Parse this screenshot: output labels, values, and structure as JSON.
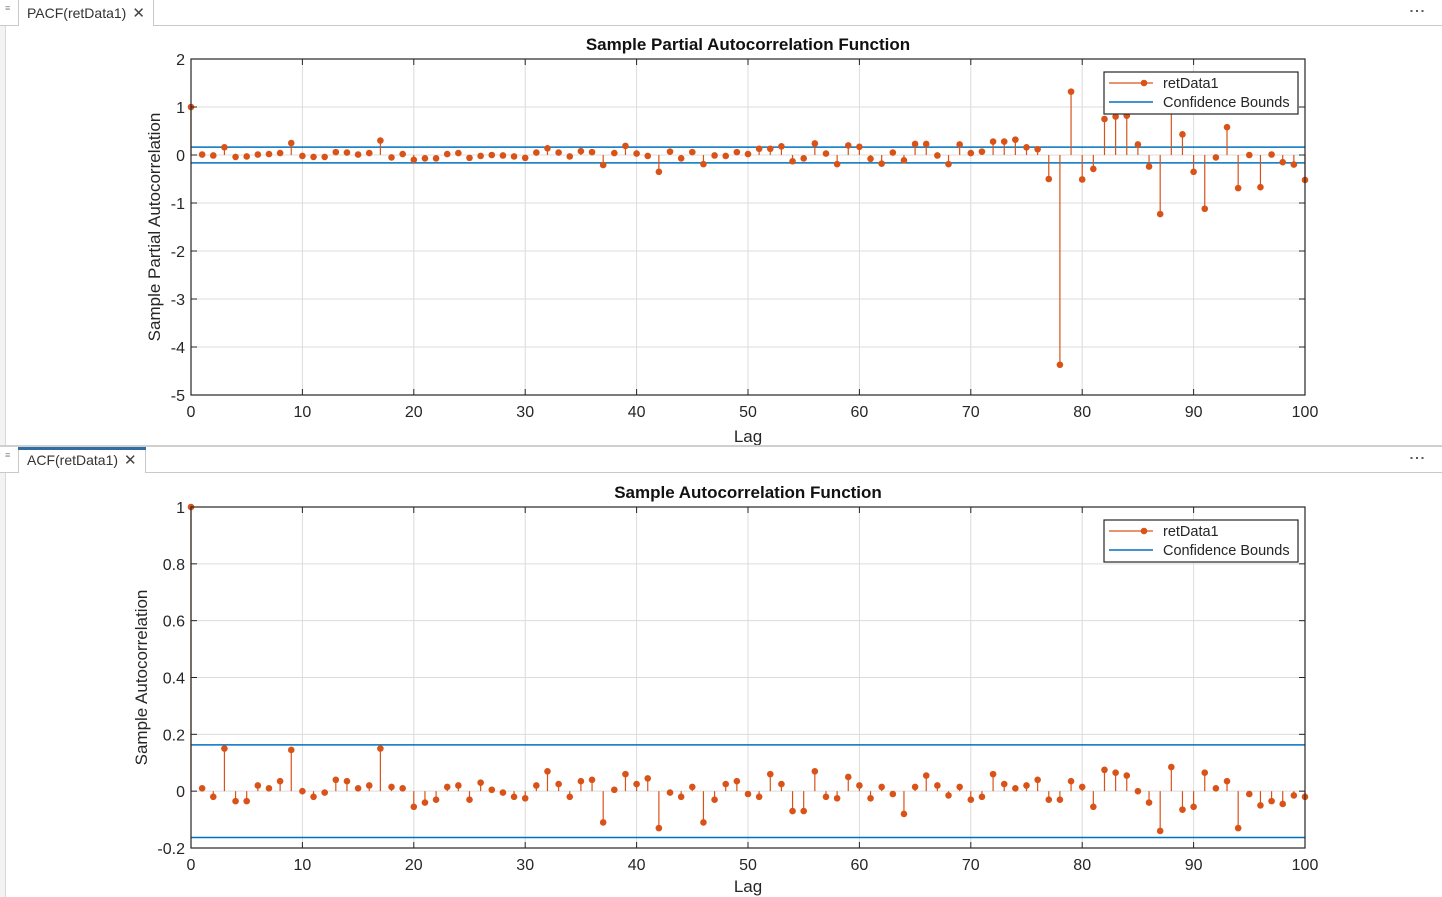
{
  "tabs": [
    {
      "label": "PACF(retData1)",
      "close": "✕",
      "menu": "⋮"
    },
    {
      "label": "ACF(retData1)",
      "close": "✕",
      "menu": "⋮"
    }
  ],
  "colors": {
    "stem": "#d95319",
    "bounds": "#0072bd",
    "grid": "#dcdcdc",
    "axis": "#262626"
  },
  "chart_data": [
    {
      "type": "stem",
      "title": "Sample Partial Autocorrelation Function",
      "xlabel": "Lag",
      "ylabel": "Sample Partial Autocorrelation",
      "xlim": [
        0,
        100
      ],
      "ylim": [
        -5,
        2
      ],
      "xticks": [
        0,
        10,
        20,
        30,
        40,
        50,
        60,
        70,
        80,
        90,
        100
      ],
      "yticks": [
        -5,
        -4,
        -3,
        -2,
        -1,
        0,
        1,
        2
      ],
      "ytick_labels": [
        "-5",
        "-4",
        "-3",
        "-2",
        "-1",
        "0",
        "1",
        "2"
      ],
      "grid": true,
      "legend_position": "top-right",
      "series": [
        {
          "name": "retData1",
          "style": "stem",
          "x": [
            0,
            1,
            2,
            3,
            4,
            5,
            6,
            7,
            8,
            9,
            10,
            11,
            12,
            13,
            14,
            15,
            16,
            17,
            18,
            19,
            20,
            21,
            22,
            23,
            24,
            25,
            26,
            27,
            28,
            29,
            30,
            31,
            32,
            33,
            34,
            35,
            36,
            37,
            38,
            39,
            40,
            41,
            42,
            43,
            44,
            45,
            46,
            47,
            48,
            49,
            50,
            51,
            52,
            53,
            54,
            55,
            56,
            57,
            58,
            59,
            60,
            61,
            62,
            63,
            64,
            65,
            66,
            67,
            68,
            69,
            70,
            71,
            72,
            73,
            74,
            75,
            76,
            77,
            78,
            79,
            80,
            81,
            82,
            83,
            84,
            85,
            86,
            87,
            88,
            89,
            90,
            91,
            92,
            93,
            94,
            95,
            96,
            97,
            98,
            99,
            100
          ],
          "values": [
            1.0,
            0.01,
            -0.01,
            0.16,
            -0.04,
            -0.03,
            0.01,
            0.02,
            0.04,
            0.25,
            -0.02,
            -0.04,
            -0.04,
            0.06,
            0.05,
            0.01,
            0.04,
            0.3,
            -0.05,
            0.02,
            -0.1,
            -0.07,
            -0.07,
            0.02,
            0.04,
            -0.06,
            -0.02,
            0.0,
            -0.01,
            -0.03,
            -0.06,
            0.05,
            0.14,
            0.05,
            -0.03,
            0.08,
            0.06,
            -0.21,
            0.04,
            0.19,
            0.03,
            -0.02,
            -0.35,
            0.07,
            -0.07,
            0.06,
            -0.19,
            -0.01,
            -0.02,
            0.06,
            0.02,
            0.13,
            0.13,
            0.18,
            -0.13,
            -0.07,
            0.24,
            0.03,
            -0.19,
            0.2,
            0.17,
            -0.08,
            -0.18,
            0.05,
            -0.11,
            0.23,
            0.23,
            -0.01,
            -0.19,
            0.22,
            0.04,
            0.07,
            0.28,
            0.28,
            0.32,
            0.16,
            0.12,
            -0.5,
            -4.37,
            1.32,
            -0.51,
            -0.29,
            0.75,
            0.8,
            0.82,
            0.22,
            -0.24,
            -1.23,
            1.14,
            0.43,
            -0.35,
            -1.12,
            -0.05,
            0.58,
            -0.69,
            0.0,
            -0.67,
            0.01,
            -0.15,
            -0.2,
            -0.52
          ]
        },
        {
          "name": "Confidence Bounds",
          "style": "line",
          "values": [
            0.163,
            -0.163
          ]
        }
      ]
    },
    {
      "type": "stem",
      "title": "Sample Autocorrelation Function",
      "xlabel": "Lag",
      "ylabel": "Sample Autocorrelation",
      "xlim": [
        0,
        100
      ],
      "ylim": [
        -0.2,
        1
      ],
      "xticks": [
        0,
        10,
        20,
        30,
        40,
        50,
        60,
        70,
        80,
        90,
        100
      ],
      "yticks": [
        -0.2,
        0,
        0.2,
        0.4,
        0.6,
        0.8,
        1
      ],
      "ytick_labels": [
        "-0.2",
        "0",
        "0.2",
        "0.4",
        "0.6",
        "0.8",
        "1"
      ],
      "grid": true,
      "legend_position": "top-right",
      "series": [
        {
          "name": "retData1",
          "style": "stem",
          "x": [
            0,
            1,
            2,
            3,
            4,
            5,
            6,
            7,
            8,
            9,
            10,
            11,
            12,
            13,
            14,
            15,
            16,
            17,
            18,
            19,
            20,
            21,
            22,
            23,
            24,
            25,
            26,
            27,
            28,
            29,
            30,
            31,
            32,
            33,
            34,
            35,
            36,
            37,
            38,
            39,
            40,
            41,
            42,
            43,
            44,
            45,
            46,
            47,
            48,
            49,
            50,
            51,
            52,
            53,
            54,
            55,
            56,
            57,
            58,
            59,
            60,
            61,
            62,
            63,
            64,
            65,
            66,
            67,
            68,
            69,
            70,
            71,
            72,
            73,
            74,
            75,
            76,
            77,
            78,
            79,
            80,
            81,
            82,
            83,
            84,
            85,
            86,
            87,
            88,
            89,
            90,
            91,
            92,
            93,
            94,
            95,
            96,
            97,
            98,
            99,
            100
          ],
          "values": [
            1.0,
            0.01,
            -0.02,
            0.15,
            -0.035,
            -0.035,
            0.02,
            0.01,
            0.035,
            0.145,
            0.0,
            -0.02,
            -0.005,
            0.04,
            0.035,
            0.01,
            0.02,
            0.15,
            0.015,
            0.01,
            -0.055,
            -0.04,
            -0.03,
            0.015,
            0.02,
            -0.03,
            0.03,
            0.005,
            -0.005,
            -0.02,
            -0.025,
            0.02,
            0.07,
            0.025,
            -0.02,
            0.035,
            0.04,
            -0.11,
            0.005,
            0.06,
            0.025,
            0.045,
            -0.13,
            -0.005,
            -0.02,
            0.015,
            -0.11,
            -0.03,
            0.025,
            0.035,
            -0.01,
            -0.02,
            0.06,
            0.025,
            -0.07,
            -0.07,
            0.07,
            -0.02,
            -0.025,
            0.05,
            0.02,
            -0.025,
            0.015,
            -0.01,
            -0.08,
            0.015,
            0.055,
            0.02,
            -0.015,
            0.015,
            -0.03,
            -0.02,
            0.06,
            0.025,
            0.01,
            0.02,
            0.04,
            -0.03,
            -0.03,
            0.035,
            0.015,
            -0.055,
            0.075,
            0.065,
            0.055,
            0.0,
            -0.04,
            -0.14,
            0.085,
            -0.065,
            -0.055,
            0.065,
            0.01,
            0.035,
            -0.13,
            -0.01,
            -0.05,
            -0.035,
            -0.045,
            -0.015,
            -0.02
          ]
        },
        {
          "name": "Confidence Bounds",
          "style": "line",
          "values": [
            0.163,
            -0.163
          ]
        }
      ]
    }
  ]
}
